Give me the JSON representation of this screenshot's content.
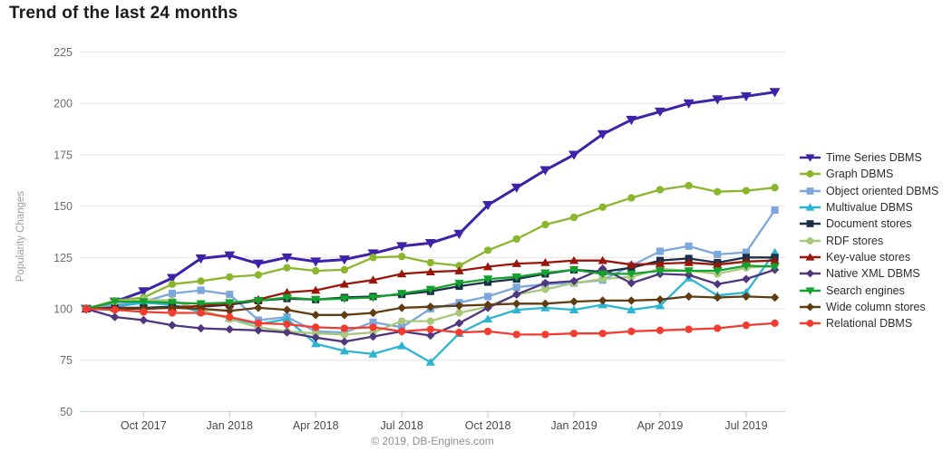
{
  "title": "Trend of the last 24 months",
  "footer": "© 2019, DB-Engines.com",
  "chart_data": {
    "type": "line",
    "title": "Trend of the last 24 months",
    "ylabel": "Popularity Changes",
    "ylim": [
      50,
      225
    ],
    "yticks": [
      225,
      200,
      175,
      150,
      125,
      100,
      75,
      50
    ],
    "grid": true,
    "legend_position": "right",
    "x_tick_labels": [
      "Oct 2017",
      "Jan 2018",
      "Apr 2018",
      "Jul 2018",
      "Oct 2018",
      "Jan 2019",
      "Apr 2019",
      "Jul 2019"
    ],
    "x_tick_indices": [
      2,
      5,
      8,
      11,
      14,
      17,
      20,
      23
    ],
    "months": [
      "Aug 2017",
      "Sep 2017",
      "Oct 2017",
      "Nov 2017",
      "Dec 2017",
      "Jan 2018",
      "Feb 2018",
      "Mar 2018",
      "Apr 2018",
      "May 2018",
      "Jun 2018",
      "Jul 2018",
      "Aug 2018",
      "Sep 2018",
      "Oct 2018",
      "Nov 2018",
      "Dec 2018",
      "Jan 2019",
      "Feb 2019",
      "Mar 2019",
      "Apr 2019",
      "May 2019",
      "Jun 2019",
      "Jul 2019",
      "Aug 2019"
    ],
    "series": [
      {
        "name": "Time Series DBMS",
        "color": "#3d23a8",
        "marker": "triangle-down",
        "values": [
          100,
          103.5,
          108.5,
          115,
          124.5,
          126,
          122,
          125,
          123,
          124,
          127,
          130.5,
          132,
          136.5,
          150.5,
          159,
          167.5,
          175,
          185,
          192,
          196,
          200,
          202,
          203.5,
          205.5
        ]
      },
      {
        "name": "Graph DBMS",
        "color": "#8ab62c",
        "marker": "circle",
        "values": [
          100,
          104,
          105.5,
          112,
          113.5,
          115.5,
          116.5,
          120,
          118.5,
          119,
          125,
          125.5,
          122.5,
          121,
          128.5,
          134,
          141,
          144.5,
          149.5,
          154,
          158,
          160,
          157,
          157.5,
          159
        ]
      },
      {
        "name": "Object oriented DBMS",
        "color": "#7ba7dd",
        "marker": "square",
        "values": [
          100,
          102,
          103.5,
          107.5,
          109,
          107,
          94.5,
          96,
          89,
          88.5,
          93.5,
          91,
          100,
          103,
          106,
          110.5,
          112,
          112.5,
          114,
          121,
          128,
          130.5,
          126.5,
          127.5,
          148
        ]
      },
      {
        "name": "Multivalue DBMS",
        "color": "#2cb5d2",
        "marker": "triangle-up",
        "values": [
          100,
          101,
          103,
          102,
          98.5,
          95.5,
          92.5,
          95,
          83,
          79.5,
          78,
          82,
          74,
          88,
          95,
          99.5,
          100.5,
          99.5,
          102,
          99.5,
          101.5,
          115,
          106.5,
          108,
          127.5
        ]
      },
      {
        "name": "Document stores",
        "color": "#1a3048",
        "marker": "square",
        "values": [
          100,
          100.5,
          100.5,
          101,
          101,
          102,
          104,
          105,
          104.5,
          105.5,
          106,
          107,
          108.5,
          111,
          113,
          114.5,
          117,
          119,
          118,
          120,
          123.5,
          124.5,
          122.5,
          125,
          125
        ]
      },
      {
        "name": "RDF stores",
        "color": "#a9c87b",
        "marker": "circle",
        "values": [
          100,
          103.5,
          104.5,
          104,
          99.5,
          95,
          91,
          89,
          88,
          87.5,
          88.5,
          94,
          94,
          98,
          101,
          107,
          109.5,
          112.5,
          114.5,
          115.5,
          119.5,
          118.5,
          117,
          120,
          121
        ]
      },
      {
        "name": "Key-value stores",
        "color": "#9a150b",
        "marker": "triangle-up",
        "values": [
          100,
          100.5,
          100,
          100.5,
          101.5,
          102.5,
          104.5,
          108,
          109,
          112,
          114,
          117,
          118,
          118.5,
          120.5,
          122,
          122.5,
          123.5,
          123.5,
          121.5,
          122,
          122.5,
          121.5,
          123,
          123.5
        ]
      },
      {
        "name": "Native XML DBMS",
        "color": "#50357f",
        "marker": "diamond",
        "values": [
          100,
          96,
          94.5,
          92,
          90.5,
          90,
          89.5,
          88.5,
          86,
          84,
          86.5,
          89,
          87,
          93,
          100.5,
          107,
          112.5,
          113.5,
          119.5,
          112.5,
          117,
          116.5,
          112,
          114.5,
          119
        ]
      },
      {
        "name": "Search engines",
        "color": "#12a22d",
        "marker": "triangle-down",
        "values": [
          100,
          103.5,
          103.5,
          103,
          102.5,
          103,
          104,
          105.5,
          104.5,
          105,
          105.5,
          107.5,
          109.5,
          112.5,
          114.5,
          115.5,
          117.5,
          119,
          117,
          117,
          118.5,
          118.5,
          118.5,
          121,
          120.5
        ]
      },
      {
        "name": "Wide column stores",
        "color": "#603c10",
        "marker": "diamond",
        "values": [
          100,
          100,
          100,
          100.5,
          100,
          99,
          100.5,
          99.5,
          97,
          97,
          98,
          100.5,
          101,
          101.5,
          102,
          102.5,
          102.5,
          103.5,
          104,
          104,
          104.5,
          106,
          105.5,
          106,
          105.5
        ]
      },
      {
        "name": "Relational DBMS",
        "color": "#f43b30",
        "marker": "circle",
        "values": [
          100,
          99.5,
          98.5,
          98,
          98,
          96,
          93,
          92.5,
          91,
          90.5,
          91,
          89,
          90,
          88.5,
          89,
          87.5,
          87.5,
          88,
          88,
          89,
          89.5,
          90,
          90.5,
          92,
          93
        ]
      }
    ]
  }
}
